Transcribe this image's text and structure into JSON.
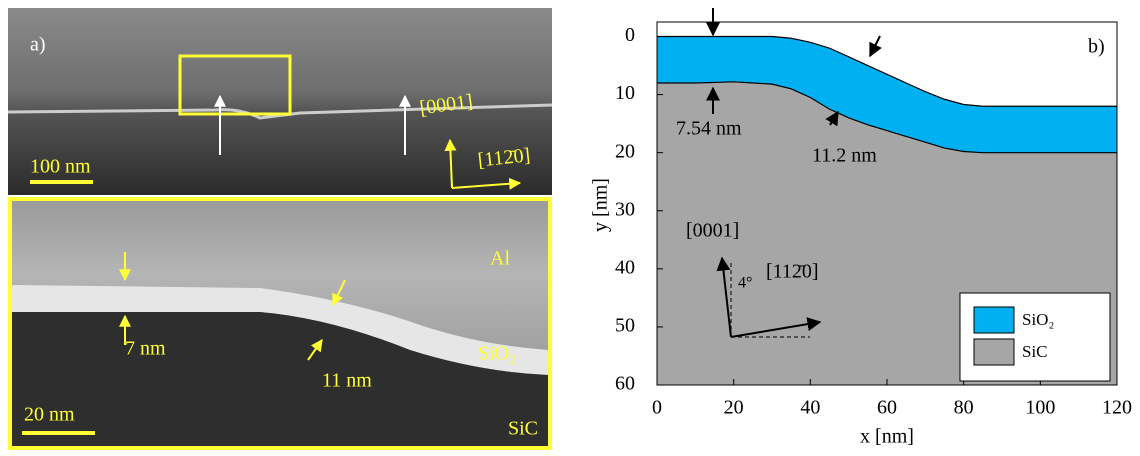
{
  "tem_panel": {
    "label": "a)",
    "scale_top": "100 nm",
    "dir_0001": "[0001]",
    "dir_1120": "[112̄0]",
    "al": "Al",
    "thin": "7 nm",
    "thick": "11 nm",
    "sio2": "SiO₂",
    "scale_bottom": "20 nm",
    "sic": "SiC"
  },
  "chart_data": {
    "type": "area",
    "panel_label": "b)",
    "xlabel": "x [nm]",
    "ylabel": "y [nm]",
    "x": [
      0,
      10,
      20,
      30,
      35,
      40,
      45,
      50,
      55,
      60,
      65,
      70,
      75,
      80,
      85,
      90,
      100,
      110,
      120
    ],
    "series": [
      {
        "name": "SiO₂",
        "color": "#00b0f0",
        "values": [
          0,
          0,
          0,
          0,
          0.3,
          1,
          2,
          3.5,
          5,
          6.5,
          8,
          9.5,
          10.8,
          11.7,
          12,
          12,
          12,
          12,
          12
        ]
      },
      {
        "name": "SiC",
        "color": "#a6a6a6",
        "values": [
          8,
          8,
          7.8,
          8.2,
          9,
          10.5,
          12.5,
          14,
          15.2,
          16.2,
          17.2,
          18.2,
          19.2,
          19.8,
          20,
          20,
          20,
          20,
          20
        ]
      }
    ],
    "xlim": [
      0,
      120
    ],
    "ylim": [
      -2.5,
      60
    ],
    "y_inverted": true,
    "xticks": [
      0,
      20,
      40,
      60,
      80,
      100,
      120
    ],
    "yticks": [
      0,
      10,
      20,
      30,
      40,
      50,
      60
    ],
    "legend": "lower right",
    "annotations": [
      "7.54 nm",
      "11.2 nm",
      "[0001]",
      "[112̄0]",
      "4°"
    ]
  }
}
